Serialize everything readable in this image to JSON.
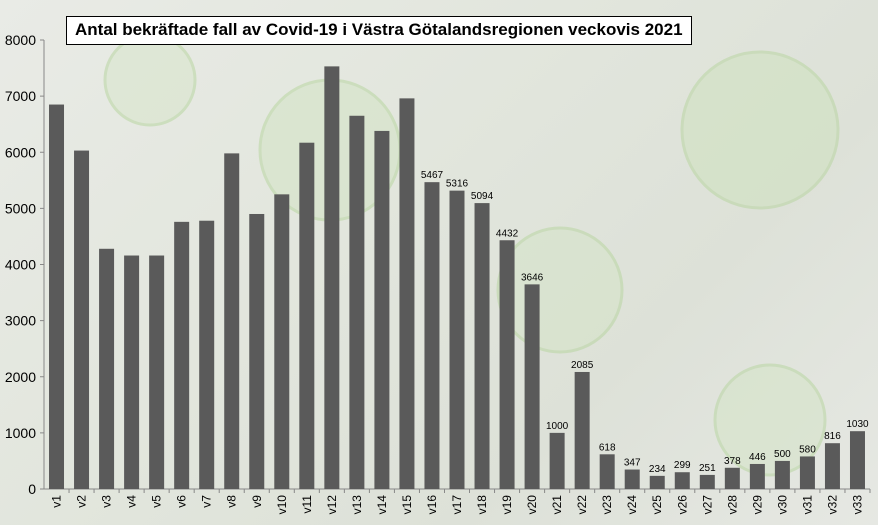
{
  "chart_data": {
    "type": "bar",
    "title": "Antal bekräftade fall av Covid-19 i Västra Götalandsregionen veckovis 2021",
    "xlabel": "",
    "ylabel": "",
    "ylim": [
      0,
      8000
    ],
    "yticks": [
      "0",
      "1000",
      "2000",
      "3000",
      "4000",
      "5000",
      "6000",
      "7000",
      "8000"
    ],
    "grid": false,
    "bar_color": "#5a5a5a",
    "categories": [
      "v1",
      "v2",
      "v3",
      "v4",
      "v5",
      "v6",
      "v7",
      "v8",
      "v9",
      "v10",
      "v11",
      "v12",
      "v13",
      "v14",
      "v15",
      "v16",
      "v17",
      "v18",
      "v19",
      "v20",
      "v21",
      "v22",
      "v23",
      "v24",
      "v25",
      "v26",
      "v27",
      "v28",
      "v29",
      "v30",
      "v31",
      "v32",
      "v33"
    ],
    "values": [
      6850,
      6030,
      4280,
      4160,
      4160,
      4760,
      4780,
      5980,
      4900,
      5250,
      6170,
      7530,
      6650,
      6380,
      6960,
      5467,
      5316,
      5094,
      4432,
      3646,
      1000,
      2085,
      618,
      347,
      234,
      299,
      251,
      378,
      446,
      500,
      580,
      816,
      1030
    ],
    "data_labels": [
      "",
      "",
      "",
      "",
      "",
      "",
      "",
      "",
      "",
      "",
      "",
      "",
      "",
      "",
      "",
      "5467",
      "5316",
      "5094",
      "4432",
      "3646",
      "1000",
      "2085",
      "618",
      "347",
      "234",
      "299",
      "251",
      "378",
      "446",
      "500",
      "580",
      "816",
      "1030"
    ]
  }
}
